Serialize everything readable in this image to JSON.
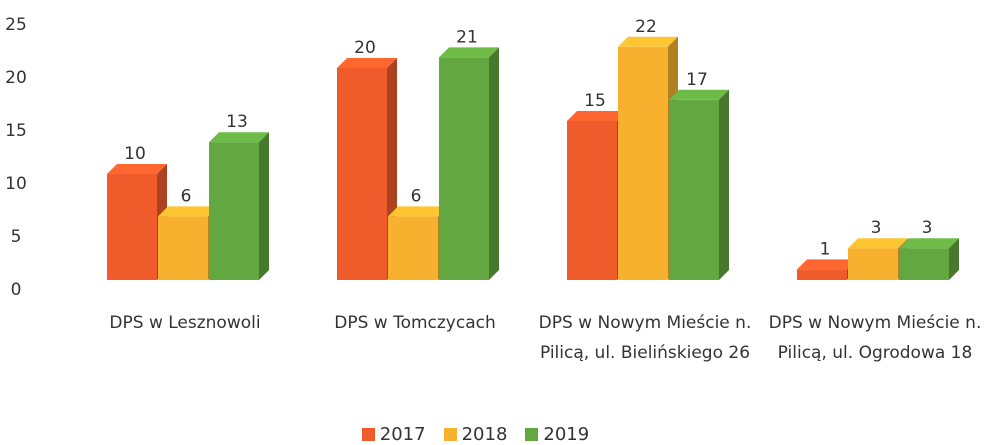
{
  "chart_data": {
    "type": "bar3d",
    "categories": [
      "DPS w Lesznowoli",
      "DPS w Tomczycach",
      "DPS w Nowym Mieście n. Pilicą, ul. Bielińskiego 26",
      "DPS w Nowym Mieście n. Pilicą, ul. Ogrodowa 18"
    ],
    "series": [
      {
        "name": "2017",
        "color": "#ef5b2b",
        "values": [
          10,
          20,
          15,
          1
        ]
      },
      {
        "name": "2018",
        "color": "#f7b12e",
        "values": [
          6,
          6,
          22,
          3
        ]
      },
      {
        "name": "2019",
        "color": "#62a740",
        "values": [
          13,
          21,
          17,
          3
        ]
      }
    ],
    "ylim": [
      0,
      25
    ],
    "yticks": [
      0,
      5,
      10,
      15,
      20,
      25
    ],
    "grid": false,
    "legend": "bottom"
  }
}
